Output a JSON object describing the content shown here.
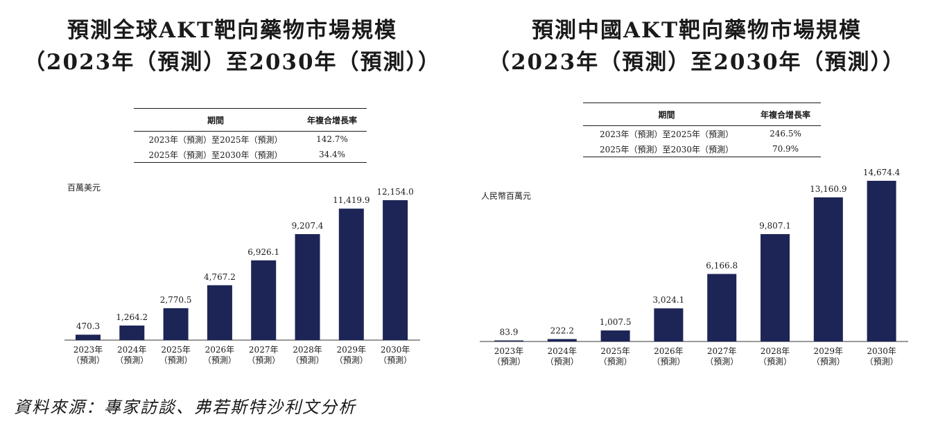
{
  "source": "資料來源：專家訪談、弗若斯特沙利文分析",
  "chart_data": [
    {
      "type": "bar",
      "title_line1": "預測全球AKT靶向藥物市場規模",
      "title_line2": "（2023年（預測）至2030年（預測））",
      "unit": "百萬美元",
      "categories": [
        [
          "2023年",
          "（預測）"
        ],
        [
          "2024年",
          "（預測）"
        ],
        [
          "2025年",
          "（預測）"
        ],
        [
          "2026年",
          "（預測）"
        ],
        [
          "2027年",
          "（預測）"
        ],
        [
          "2028年",
          "（預測）"
        ],
        [
          "2029年",
          "（預測）"
        ],
        [
          "2030年",
          "（預測）"
        ]
      ],
      "values": [
        470.3,
        1264.2,
        2770.5,
        4767.2,
        6926.1,
        9207.4,
        11419.9,
        12154.0
      ],
      "value_labels": [
        "470.3",
        "1,264.2",
        "2,770.5",
        "4,767.2",
        "6,926.1",
        "9,207.4",
        "11,419.9",
        "12,154.0"
      ],
      "bar_color": "#1c2556",
      "cagr_table": {
        "headers": [
          "期間",
          "年複合增長率"
        ],
        "rows": [
          [
            "2023年（預測）至2025年（預測）",
            "142.7%"
          ],
          [
            "2025年（預測）至2030年（預測）",
            "34.4%"
          ]
        ]
      }
    },
    {
      "type": "bar",
      "title_line1": "預測中國AKT靶向藥物市場規模",
      "title_line2": "（2023年（預測）至2030年（預測））",
      "unit": "人民幣百萬元",
      "categories": [
        [
          "2023年",
          "（預測）"
        ],
        [
          "2024年",
          "（預測）"
        ],
        [
          "2025年",
          "（預測）"
        ],
        [
          "2026年",
          "（預測）"
        ],
        [
          "2027年",
          "（預測）"
        ],
        [
          "2028年",
          "（預測）"
        ],
        [
          "2029年",
          "（預測）"
        ],
        [
          "2030年",
          "（預測）"
        ]
      ],
      "values": [
        83.9,
        222.2,
        1007.5,
        3024.1,
        6166.8,
        9807.1,
        13160.9,
        14674.4
      ],
      "value_labels": [
        "83.9",
        "222.2",
        "1,007.5",
        "3,024.1",
        "6,166.8",
        "9,807.1",
        "13,160.9",
        "14,674.4"
      ],
      "bar_color": "#1c2556",
      "cagr_table": {
        "headers": [
          "期間",
          "年複合增長率"
        ],
        "rows": [
          [
            "2023年（預測）至2025年（預測）",
            "246.5%"
          ],
          [
            "2025年（預測）至2030年（預測）",
            "70.9%"
          ]
        ]
      }
    }
  ]
}
